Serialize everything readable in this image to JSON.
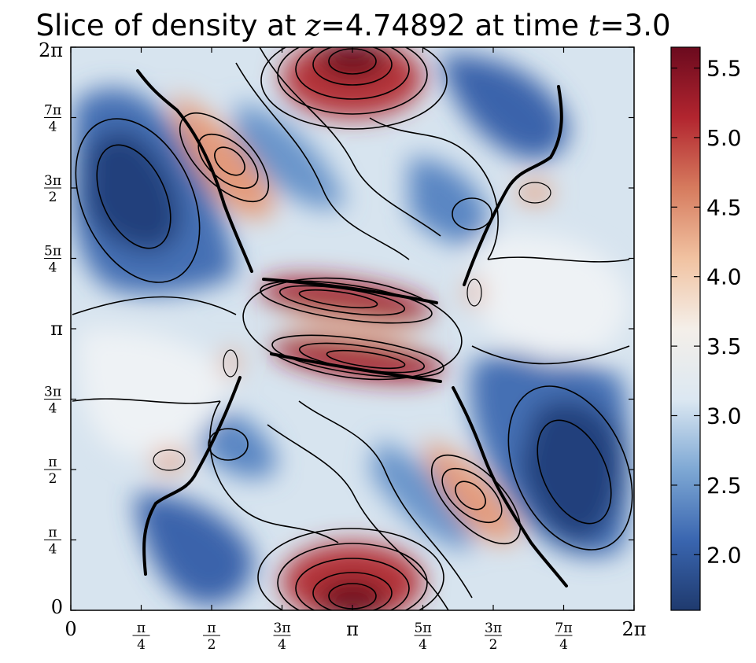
{
  "chart_data": {
    "type": "heatmap",
    "title_prefix": "Slice of density at ",
    "title_z_var": "z",
    "title_z_value": "4.74892",
    "title_mid": " at time ",
    "title_t_var": "t",
    "title_t_value": "3.0",
    "equals": "=",
    "variable": "density",
    "contours": true,
    "xlim": [
      0,
      6.2832
    ],
    "ylim": [
      0,
      6.2832
    ],
    "x_ticks": [
      {
        "value": 0,
        "num": "0",
        "den": ""
      },
      {
        "value": 0.7854,
        "num": "π",
        "den": "4"
      },
      {
        "value": 1.5708,
        "num": "π",
        "den": "2"
      },
      {
        "value": 2.3562,
        "num": "3π",
        "den": "4"
      },
      {
        "value": 3.1416,
        "num": "π",
        "den": ""
      },
      {
        "value": 3.927,
        "num": "5π",
        "den": "4"
      },
      {
        "value": 4.7124,
        "num": "3π",
        "den": "2"
      },
      {
        "value": 5.4978,
        "num": "7π",
        "den": "4"
      },
      {
        "value": 6.2832,
        "num": "2π",
        "den": ""
      }
    ],
    "y_ticks": [
      {
        "value": 0,
        "num": "0",
        "den": ""
      },
      {
        "value": 0.7854,
        "num": "π",
        "den": "4"
      },
      {
        "value": 1.5708,
        "num": "π",
        "den": "2"
      },
      {
        "value": 2.3562,
        "num": "3π",
        "den": "4"
      },
      {
        "value": 3.1416,
        "num": "π",
        "den": ""
      },
      {
        "value": 3.927,
        "num": "5π",
        "den": "4"
      },
      {
        "value": 4.7124,
        "num": "3π",
        "den": "2"
      },
      {
        "value": 5.4978,
        "num": "7π",
        "den": "4"
      },
      {
        "value": 6.2832,
        "num": "2π",
        "den": ""
      }
    ],
    "colorbar": {
      "colormap": "RdBu_r",
      "range": [
        1.6,
        5.65
      ],
      "ticks": [
        {
          "value": 2.0,
          "label": "2.0"
        },
        {
          "value": 2.5,
          "label": "2.5"
        },
        {
          "value": 3.0,
          "label": "3.0"
        },
        {
          "value": 3.5,
          "label": "3.5"
        },
        {
          "value": 4.0,
          "label": "4.0"
        },
        {
          "value": 4.5,
          "label": "4.5"
        },
        {
          "value": 5.0,
          "label": "5.0"
        },
        {
          "value": 5.5,
          "label": "5.5"
        }
      ],
      "colors": [
        "#1f3a6e",
        "#3a66b0",
        "#7ea8d4",
        "#dce8f2",
        "#f4efe9",
        "#f1c2a1",
        "#d67b5e",
        "#b2252f",
        "#6b0a1e"
      ]
    },
    "features": [
      {
        "name": "high-density-peak-top",
        "x": 3.14,
        "y": 6.1,
        "level": 5.6
      },
      {
        "name": "high-density-peak-bottom",
        "x": 3.14,
        "y": 0.12,
        "level": 5.6
      },
      {
        "name": "high-density-band-upper",
        "x": 2.85,
        "y": 3.4,
        "level": 5.5
      },
      {
        "name": "high-density-band-lower",
        "x": 3.45,
        "y": 2.85,
        "level": 5.5
      },
      {
        "name": "moderate-peak-upper-left",
        "x": 1.8,
        "y": 4.85,
        "level": 4.8
      },
      {
        "name": "moderate-peak-lower-right",
        "x": 4.5,
        "y": 1.35,
        "level": 4.8
      },
      {
        "name": "low-density-left",
        "x": 0.7,
        "y": 4.8,
        "level": 1.8
      },
      {
        "name": "low-density-right",
        "x": 5.6,
        "y": 1.6,
        "level": 1.8
      },
      {
        "name": "low-density-small-upper-right",
        "x": 4.6,
        "y": 4.3,
        "level": 2.1
      },
      {
        "name": "low-density-small-lower-left",
        "x": 1.7,
        "y": 1.9,
        "level": 2.1
      }
    ]
  }
}
